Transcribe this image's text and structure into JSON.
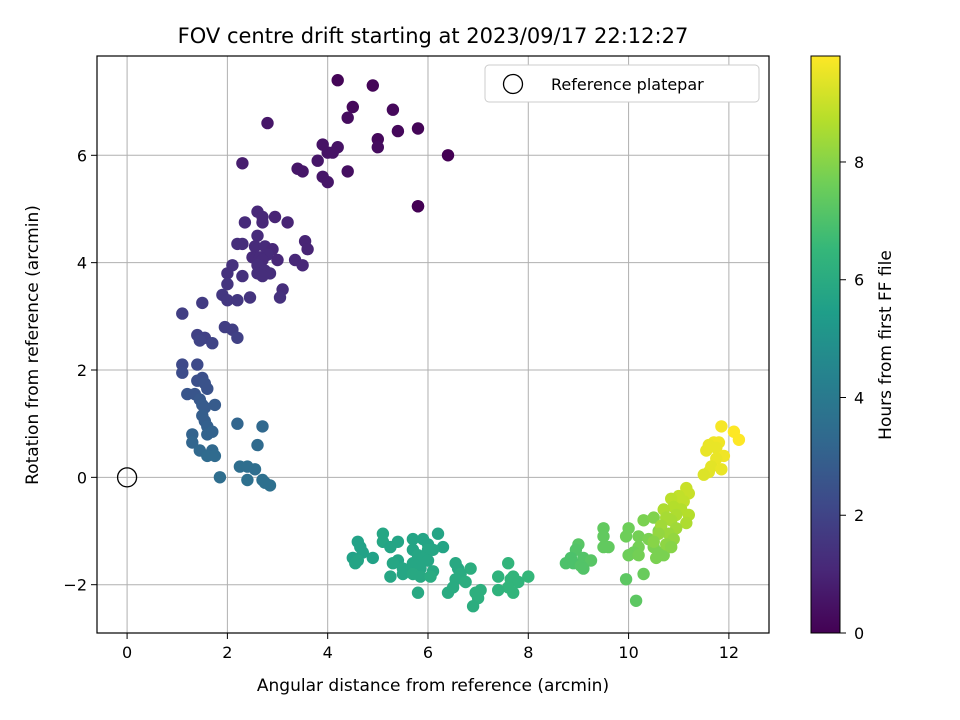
{
  "chart_data": {
    "type": "scatter",
    "title": "FOV centre drift starting at 2023/09/17 22:12:27",
    "xlabel": "Angular distance from reference (arcmin)",
    "ylabel": "Rotation from reference (arcmin)",
    "xlim": [
      -0.6,
      12.8
    ],
    "ylim": [
      -2.9,
      7.85
    ],
    "xticks": [
      0,
      2,
      4,
      6,
      8,
      10,
      12
    ],
    "yticks": [
      -2,
      0,
      2,
      4,
      6
    ],
    "grid": true,
    "legend": {
      "location": "top-right",
      "entries": [
        "Reference platepar"
      ]
    },
    "reference_point": {
      "name": "Reference platepar",
      "x": 0,
      "y": 0,
      "marker": "hollow-circle"
    },
    "colorbar": {
      "label": "Hours from first FF file",
      "colormap": "viridis",
      "range": [
        0,
        9.8
      ],
      "ticks": [
        0,
        2,
        4,
        6,
        8
      ]
    },
    "colormap_stops": [
      "#440154",
      "#482878",
      "#3e4989",
      "#31688e",
      "#26828e",
      "#1f9e89",
      "#35b779",
      "#6ece58",
      "#b5de2b",
      "#fde725"
    ],
    "points": [
      {
        "x": 4.2,
        "y": 7.4,
        "t": 0.1
      },
      {
        "x": 4.9,
        "y": 7.3,
        "t": 0.1
      },
      {
        "x": 4.5,
        "y": 6.9,
        "t": 0.2
      },
      {
        "x": 5.3,
        "y": 6.85,
        "t": 0.2
      },
      {
        "x": 4.4,
        "y": 6.7,
        "t": 0.3
      },
      {
        "x": 2.8,
        "y": 6.6,
        "t": 0.6
      },
      {
        "x": 5.4,
        "y": 6.45,
        "t": 0.2
      },
      {
        "x": 5.8,
        "y": 6.5,
        "t": 0.1
      },
      {
        "x": 5.0,
        "y": 6.3,
        "t": 0.2
      },
      {
        "x": 3.9,
        "y": 6.2,
        "t": 0.5
      },
      {
        "x": 4.2,
        "y": 6.15,
        "t": 0.5
      },
      {
        "x": 5.0,
        "y": 6.15,
        "t": 0.3
      },
      {
        "x": 4.0,
        "y": 6.05,
        "t": 0.5
      },
      {
        "x": 4.1,
        "y": 6.05,
        "t": 0.5
      },
      {
        "x": 6.4,
        "y": 6.0,
        "t": 0.0
      },
      {
        "x": 3.8,
        "y": 5.9,
        "t": 0.6
      },
      {
        "x": 2.3,
        "y": 5.85,
        "t": 0.8
      },
      {
        "x": 3.4,
        "y": 5.75,
        "t": 0.6
      },
      {
        "x": 3.5,
        "y": 5.7,
        "t": 0.6
      },
      {
        "x": 4.4,
        "y": 5.7,
        "t": 0.4
      },
      {
        "x": 3.9,
        "y": 5.6,
        "t": 0.6
      },
      {
        "x": 4.0,
        "y": 5.5,
        "t": 0.6
      },
      {
        "x": 5.8,
        "y": 5.05,
        "t": 0.0
      },
      {
        "x": 5.8,
        "y": 5.05,
        "t": 0.0
      },
      {
        "x": 2.6,
        "y": 4.95,
        "t": 1.1
      },
      {
        "x": 2.7,
        "y": 4.85,
        "t": 1.1
      },
      {
        "x": 2.95,
        "y": 4.85,
        "t": 1.0
      },
      {
        "x": 2.7,
        "y": 4.75,
        "t": 1.1
      },
      {
        "x": 2.35,
        "y": 4.75,
        "t": 1.2
      },
      {
        "x": 3.2,
        "y": 4.75,
        "t": 1.0
      },
      {
        "x": 2.6,
        "y": 4.5,
        "t": 1.2
      },
      {
        "x": 3.55,
        "y": 4.4,
        "t": 1.0
      },
      {
        "x": 2.2,
        "y": 4.35,
        "t": 1.3
      },
      {
        "x": 2.3,
        "y": 4.35,
        "t": 1.3
      },
      {
        "x": 2.55,
        "y": 4.3,
        "t": 1.2
      },
      {
        "x": 2.75,
        "y": 4.3,
        "t": 1.2
      },
      {
        "x": 2.9,
        "y": 4.25,
        "t": 1.1
      },
      {
        "x": 3.6,
        "y": 4.25,
        "t": 1.0
      },
      {
        "x": 2.8,
        "y": 4.15,
        "t": 1.2
      },
      {
        "x": 2.5,
        "y": 4.1,
        "t": 1.2
      },
      {
        "x": 2.65,
        "y": 4.1,
        "t": 1.2
      },
      {
        "x": 2.7,
        "y": 4.05,
        "t": 1.2
      },
      {
        "x": 3.0,
        "y": 4.05,
        "t": 1.1
      },
      {
        "x": 3.35,
        "y": 4.05,
        "t": 1.1
      },
      {
        "x": 2.1,
        "y": 3.95,
        "t": 1.4
      },
      {
        "x": 2.6,
        "y": 3.95,
        "t": 1.3
      },
      {
        "x": 3.5,
        "y": 3.95,
        "t": 1.1
      },
      {
        "x": 2.75,
        "y": 3.85,
        "t": 1.3
      },
      {
        "x": 2.0,
        "y": 3.8,
        "t": 1.4
      },
      {
        "x": 2.6,
        "y": 3.8,
        "t": 1.3
      },
      {
        "x": 2.85,
        "y": 3.8,
        "t": 1.3
      },
      {
        "x": 2.3,
        "y": 3.75,
        "t": 1.4
      },
      {
        "x": 2.7,
        "y": 3.75,
        "t": 1.3
      },
      {
        "x": 2.0,
        "y": 3.6,
        "t": 1.5
      },
      {
        "x": 3.1,
        "y": 3.5,
        "t": 1.3
      },
      {
        "x": 1.9,
        "y": 3.4,
        "t": 1.6
      },
      {
        "x": 2.45,
        "y": 3.35,
        "t": 1.5
      },
      {
        "x": 3.05,
        "y": 3.35,
        "t": 1.4
      },
      {
        "x": 2.0,
        "y": 3.3,
        "t": 1.6
      },
      {
        "x": 2.2,
        "y": 3.3,
        "t": 1.6
      },
      {
        "x": 1.5,
        "y": 3.25,
        "t": 1.7
      },
      {
        "x": 1.1,
        "y": 3.05,
        "t": 1.8
      },
      {
        "x": 1.95,
        "y": 2.8,
        "t": 1.8
      },
      {
        "x": 2.1,
        "y": 2.75,
        "t": 1.8
      },
      {
        "x": 1.4,
        "y": 2.65,
        "t": 1.9
      },
      {
        "x": 1.55,
        "y": 2.6,
        "t": 1.9
      },
      {
        "x": 2.2,
        "y": 2.6,
        "t": 1.9
      },
      {
        "x": 1.45,
        "y": 2.55,
        "t": 2.0
      },
      {
        "x": 1.7,
        "y": 2.5,
        "t": 2.0
      },
      {
        "x": 1.1,
        "y": 2.1,
        "t": 2.2
      },
      {
        "x": 1.4,
        "y": 2.1,
        "t": 2.2
      },
      {
        "x": 1.1,
        "y": 1.95,
        "t": 2.3
      },
      {
        "x": 1.5,
        "y": 1.85,
        "t": 2.4
      },
      {
        "x": 1.4,
        "y": 1.8,
        "t": 2.4
      },
      {
        "x": 1.55,
        "y": 1.75,
        "t": 2.5
      },
      {
        "x": 1.6,
        "y": 1.65,
        "t": 2.5
      },
      {
        "x": 1.2,
        "y": 1.55,
        "t": 2.6
      },
      {
        "x": 1.35,
        "y": 1.55,
        "t": 2.6
      },
      {
        "x": 1.45,
        "y": 1.45,
        "t": 2.7
      },
      {
        "x": 1.5,
        "y": 1.35,
        "t": 2.8
      },
      {
        "x": 1.55,
        "y": 1.3,
        "t": 2.8
      },
      {
        "x": 1.75,
        "y": 1.35,
        "t": 2.8
      },
      {
        "x": 1.5,
        "y": 1.15,
        "t": 2.9
      },
      {
        "x": 1.55,
        "y": 1.05,
        "t": 2.9
      },
      {
        "x": 1.6,
        "y": 0.95,
        "t": 3.0
      },
      {
        "x": 2.2,
        "y": 1.0,
        "t": 3.2
      },
      {
        "x": 2.7,
        "y": 0.95,
        "t": 3.3
      },
      {
        "x": 1.3,
        "y": 0.8,
        "t": 3.1
      },
      {
        "x": 1.6,
        "y": 0.8,
        "t": 3.1
      },
      {
        "x": 1.7,
        "y": 0.85,
        "t": 3.1
      },
      {
        "x": 1.3,
        "y": 0.65,
        "t": 3.2
      },
      {
        "x": 2.6,
        "y": 0.6,
        "t": 3.4
      },
      {
        "x": 1.45,
        "y": 0.5,
        "t": 3.3
      },
      {
        "x": 1.7,
        "y": 0.5,
        "t": 3.3
      },
      {
        "x": 1.6,
        "y": 0.4,
        "t": 3.4
      },
      {
        "x": 1.75,
        "y": 0.4,
        "t": 3.4
      },
      {
        "x": 2.25,
        "y": 0.2,
        "t": 3.5
      },
      {
        "x": 2.4,
        "y": 0.2,
        "t": 3.5
      },
      {
        "x": 2.55,
        "y": 0.15,
        "t": 3.5
      },
      {
        "x": 1.85,
        "y": 0.0,
        "t": 3.5
      },
      {
        "x": 2.4,
        "y": -0.05,
        "t": 3.6
      },
      {
        "x": 2.7,
        "y": -0.05,
        "t": 3.6
      },
      {
        "x": 2.75,
        "y": -0.1,
        "t": 3.6
      },
      {
        "x": 2.85,
        "y": -0.15,
        "t": 3.6
      },
      {
        "x": 5.1,
        "y": -1.05,
        "t": 5.8
      },
      {
        "x": 6.2,
        "y": -1.05,
        "t": 5.7
      },
      {
        "x": 5.7,
        "y": -1.15,
        "t": 5.7
      },
      {
        "x": 5.9,
        "y": -1.15,
        "t": 5.7
      },
      {
        "x": 4.6,
        "y": -1.2,
        "t": 5.6
      },
      {
        "x": 5.1,
        "y": -1.2,
        "t": 5.8
      },
      {
        "x": 5.4,
        "y": -1.2,
        "t": 5.7
      },
      {
        "x": 6.0,
        "y": -1.25,
        "t": 5.7
      },
      {
        "x": 4.65,
        "y": -1.3,
        "t": 5.6
      },
      {
        "x": 5.25,
        "y": -1.3,
        "t": 5.7
      },
      {
        "x": 6.3,
        "y": -1.3,
        "t": 5.7
      },
      {
        "x": 5.7,
        "y": -1.35,
        "t": 5.7
      },
      {
        "x": 6.0,
        "y": -1.35,
        "t": 5.8
      },
      {
        "x": 6.1,
        "y": -1.35,
        "t": 5.8
      },
      {
        "x": 4.7,
        "y": -1.4,
        "t": 5.6
      },
      {
        "x": 5.8,
        "y": -1.45,
        "t": 5.8
      },
      {
        "x": 4.5,
        "y": -1.5,
        "t": 5.6
      },
      {
        "x": 4.9,
        "y": -1.5,
        "t": 5.6
      },
      {
        "x": 5.9,
        "y": -1.5,
        "t": 5.8
      },
      {
        "x": 4.6,
        "y": -1.55,
        "t": 5.7
      },
      {
        "x": 5.4,
        "y": -1.55,
        "t": 5.7
      },
      {
        "x": 6.0,
        "y": -1.55,
        "t": 5.8
      },
      {
        "x": 4.55,
        "y": -1.6,
        "t": 5.7
      },
      {
        "x": 5.3,
        "y": -1.6,
        "t": 5.8
      },
      {
        "x": 5.7,
        "y": -1.6,
        "t": 5.8
      },
      {
        "x": 6.55,
        "y": -1.6,
        "t": 5.9
      },
      {
        "x": 7.6,
        "y": -1.6,
        "t": 6.4
      },
      {
        "x": 5.5,
        "y": -1.7,
        "t": 5.8
      },
      {
        "x": 5.85,
        "y": -1.7,
        "t": 5.8
      },
      {
        "x": 6.6,
        "y": -1.7,
        "t": 5.9
      },
      {
        "x": 6.85,
        "y": -1.7,
        "t": 6.1
      },
      {
        "x": 5.6,
        "y": -1.75,
        "t": 5.8
      },
      {
        "x": 6.1,
        "y": -1.75,
        "t": 5.9
      },
      {
        "x": 5.5,
        "y": -1.8,
        "t": 5.8
      },
      {
        "x": 5.7,
        "y": -1.8,
        "t": 5.9
      },
      {
        "x": 6.65,
        "y": -1.8,
        "t": 6.0
      },
      {
        "x": 5.25,
        "y": -1.85,
        "t": 5.8
      },
      {
        "x": 5.85,
        "y": -1.85,
        "t": 5.9
      },
      {
        "x": 6.05,
        "y": -1.85,
        "t": 6.0
      },
      {
        "x": 7.4,
        "y": -1.85,
        "t": 6.3
      },
      {
        "x": 7.7,
        "y": -1.85,
        "t": 6.4
      },
      {
        "x": 8.0,
        "y": -1.85,
        "t": 6.5
      },
      {
        "x": 6.55,
        "y": -1.9,
        "t": 6.0
      },
      {
        "x": 7.65,
        "y": -1.9,
        "t": 6.4
      },
      {
        "x": 6.75,
        "y": -1.95,
        "t": 6.1
      },
      {
        "x": 7.8,
        "y": -1.95,
        "t": 6.4
      },
      {
        "x": 6.5,
        "y": -2.05,
        "t": 6.0
      },
      {
        "x": 7.6,
        "y": -2.05,
        "t": 6.4
      },
      {
        "x": 7.05,
        "y": -2.1,
        "t": 6.2
      },
      {
        "x": 7.4,
        "y": -2.1,
        "t": 6.3
      },
      {
        "x": 5.8,
        "y": -2.15,
        "t": 5.9
      },
      {
        "x": 6.4,
        "y": -2.15,
        "t": 6.0
      },
      {
        "x": 6.95,
        "y": -2.15,
        "t": 6.2
      },
      {
        "x": 7.7,
        "y": -2.15,
        "t": 6.4
      },
      {
        "x": 7.0,
        "y": -2.25,
        "t": 6.2
      },
      {
        "x": 6.9,
        "y": -2.4,
        "t": 6.1
      },
      {
        "x": 9.5,
        "y": -0.95,
        "t": 7.4
      },
      {
        "x": 10.0,
        "y": -0.95,
        "t": 7.6
      },
      {
        "x": 10.3,
        "y": -0.8,
        "t": 7.8
      },
      {
        "x": 10.5,
        "y": -0.75,
        "t": 7.9
      },
      {
        "x": 9.5,
        "y": -1.1,
        "t": 7.4
      },
      {
        "x": 9.95,
        "y": -1.1,
        "t": 7.6
      },
      {
        "x": 10.2,
        "y": -1.1,
        "t": 7.7
      },
      {
        "x": 10.4,
        "y": -1.15,
        "t": 7.8
      },
      {
        "x": 10.6,
        "y": -1.0,
        "t": 7.9
      },
      {
        "x": 9.0,
        "y": -1.25,
        "t": 7.2
      },
      {
        "x": 9.5,
        "y": -1.3,
        "t": 7.4
      },
      {
        "x": 9.6,
        "y": -1.3,
        "t": 7.4
      },
      {
        "x": 10.2,
        "y": -1.3,
        "t": 7.7
      },
      {
        "x": 10.5,
        "y": -1.3,
        "t": 7.8
      },
      {
        "x": 8.95,
        "y": -1.35,
        "t": 7.1
      },
      {
        "x": 10.1,
        "y": -1.4,
        "t": 7.6
      },
      {
        "x": 10.6,
        "y": -1.4,
        "t": 7.8
      },
      {
        "x": 10.0,
        "y": -1.45,
        "t": 7.6
      },
      {
        "x": 10.2,
        "y": -1.45,
        "t": 7.7
      },
      {
        "x": 10.7,
        "y": -1.45,
        "t": 7.8
      },
      {
        "x": 10.55,
        "y": -1.5,
        "t": 7.8
      },
      {
        "x": 8.85,
        "y": -1.5,
        "t": 7.0
      },
      {
        "x": 9.1,
        "y": -1.5,
        "t": 7.1
      },
      {
        "x": 9.25,
        "y": -1.55,
        "t": 7.2
      },
      {
        "x": 8.75,
        "y": -1.6,
        "t": 7.0
      },
      {
        "x": 8.9,
        "y": -1.6,
        "t": 7.0
      },
      {
        "x": 9.05,
        "y": -1.65,
        "t": 7.1
      },
      {
        "x": 9.1,
        "y": -1.7,
        "t": 7.1
      },
      {
        "x": 10.3,
        "y": -1.8,
        "t": 7.5
      },
      {
        "x": 9.95,
        "y": -1.9,
        "t": 7.3
      },
      {
        "x": 10.15,
        "y": -2.3,
        "t": 7.3
      },
      {
        "x": 11.85,
        "y": 0.95,
        "t": 9.7
      },
      {
        "x": 12.1,
        "y": 0.85,
        "t": 9.8
      },
      {
        "x": 12.2,
        "y": 0.7,
        "t": 9.8
      },
      {
        "x": 11.7,
        "y": 0.65,
        "t": 9.6
      },
      {
        "x": 11.8,
        "y": 0.65,
        "t": 9.6
      },
      {
        "x": 11.6,
        "y": 0.6,
        "t": 9.5
      },
      {
        "x": 11.75,
        "y": 0.55,
        "t": 9.5
      },
      {
        "x": 11.55,
        "y": 0.5,
        "t": 9.5
      },
      {
        "x": 11.9,
        "y": 0.4,
        "t": 9.6
      },
      {
        "x": 11.75,
        "y": 0.35,
        "t": 9.5
      },
      {
        "x": 11.65,
        "y": 0.2,
        "t": 9.4
      },
      {
        "x": 11.85,
        "y": 0.15,
        "t": 9.5
      },
      {
        "x": 11.6,
        "y": 0.1,
        "t": 9.4
      },
      {
        "x": 11.5,
        "y": 0.05,
        "t": 9.3
      },
      {
        "x": 11.15,
        "y": -0.2,
        "t": 9.0
      },
      {
        "x": 11.2,
        "y": -0.3,
        "t": 9.0
      },
      {
        "x": 11.0,
        "y": -0.35,
        "t": 8.9
      },
      {
        "x": 10.85,
        "y": -0.4,
        "t": 8.8
      },
      {
        "x": 11.1,
        "y": -0.45,
        "t": 8.9
      },
      {
        "x": 10.9,
        "y": -0.55,
        "t": 8.7
      },
      {
        "x": 11.05,
        "y": -0.6,
        "t": 8.7
      },
      {
        "x": 10.7,
        "y": -0.6,
        "t": 8.6
      },
      {
        "x": 10.95,
        "y": -0.7,
        "t": 8.6
      },
      {
        "x": 11.2,
        "y": -0.7,
        "t": 8.7
      },
      {
        "x": 10.75,
        "y": -0.75,
        "t": 8.5
      },
      {
        "x": 10.85,
        "y": -0.8,
        "t": 8.5
      },
      {
        "x": 11.15,
        "y": -0.85,
        "t": 8.6
      },
      {
        "x": 10.65,
        "y": -0.9,
        "t": 8.4
      },
      {
        "x": 10.95,
        "y": -0.95,
        "t": 8.4
      },
      {
        "x": 10.8,
        "y": -1.05,
        "t": 8.3
      },
      {
        "x": 10.6,
        "y": -1.05,
        "t": 8.2
      },
      {
        "x": 10.9,
        "y": -1.15,
        "t": 8.2
      },
      {
        "x": 10.75,
        "y": -1.25,
        "t": 8.1
      },
      {
        "x": 10.5,
        "y": -1.2,
        "t": 8.0
      },
      {
        "x": 10.85,
        "y": -1.3,
        "t": 8.0
      }
    ]
  }
}
